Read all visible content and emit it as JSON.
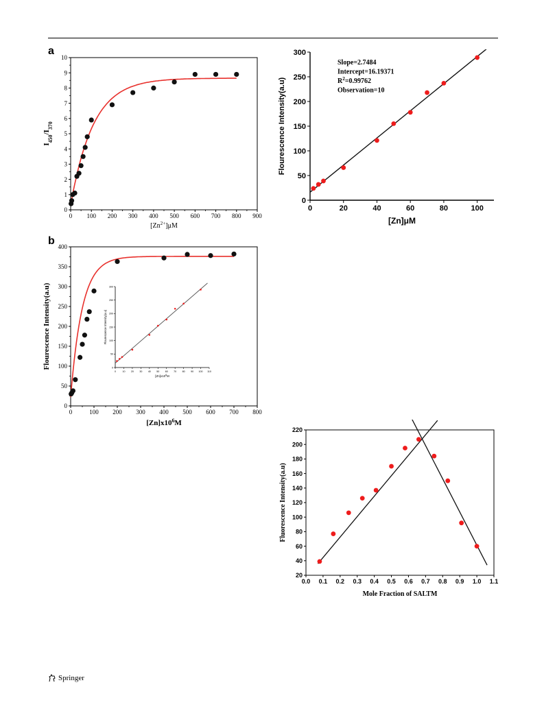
{
  "page": {
    "panel_a_letter": "a",
    "panel_b_letter": "b",
    "footer_publisher": "Springer",
    "footer_icon": "springer-horse-logo-icon"
  },
  "colors": {
    "fit_curve": "#e8302c",
    "marker_black": "#111111",
    "marker_red": "#ee1c1c",
    "line_black": "#111111",
    "axis": "#000000"
  },
  "chart_data": [
    {
      "id": "chart-a",
      "type": "scatter",
      "xlabel": "[Zn2+]μM",
      "ylabel": "I450/I370",
      "xlim": [
        0,
        900
      ],
      "ylim": [
        0,
        10
      ],
      "xticks": [
        0,
        100,
        200,
        300,
        400,
        500,
        600,
        700,
        800,
        900
      ],
      "yticks": [
        0,
        1,
        2,
        3,
        4,
        5,
        6,
        7,
        8,
        9,
        10
      ],
      "series": [
        {
          "marker": "black",
          "x": [
            2,
            5,
            10,
            20,
            30,
            40,
            50,
            60,
            70,
            80,
            100,
            200,
            300,
            400,
            500,
            600,
            700,
            800
          ],
          "y": [
            0.4,
            0.6,
            1.0,
            1.1,
            2.2,
            2.4,
            2.9,
            3.5,
            4.1,
            4.8,
            5.9,
            6.9,
            7.7,
            8.0,
            8.4,
            8.9,
            8.9,
            8.9
          ]
        }
      ],
      "fit": {
        "kind": "saturation",
        "y0": 0.3,
        "ymax": 8.65,
        "k": 0.0092,
        "xmax": 800
      }
    },
    {
      "id": "chart-linear-zn",
      "type": "scatter",
      "xlabel": "[Zn]μM",
      "ylabel": "Flourescence Intensity(a.u)",
      "xlim": [
        0,
        110
      ],
      "ylim": [
        0,
        300
      ],
      "xticks": [
        0,
        20,
        40,
        60,
        80,
        100
      ],
      "yticks": [
        0,
        50,
        100,
        150,
        200,
        250,
        300
      ],
      "annotation": [
        "Slope=2.7484",
        "Intercept=16.19371",
        "R2=0.99762",
        "Observation=10"
      ],
      "series": [
        {
          "marker": "red",
          "x": [
            2,
            5,
            8,
            20,
            40,
            50,
            60,
            70,
            80,
            100
          ],
          "y": [
            24,
            32,
            39,
            66,
            121,
            155,
            178,
            218,
            237,
            289
          ]
        }
      ],
      "fit": {
        "kind": "line",
        "slope": 2.7484,
        "intercept": 16.19371,
        "x0": 0,
        "x1": 108
      }
    },
    {
      "id": "chart-b",
      "type": "scatter",
      "xlabel": "[Zn]x106M",
      "ylabel": "Flourescence Intensity(a.u)",
      "xlim": [
        0,
        800
      ],
      "ylim": [
        0,
        400
      ],
      "xticks": [
        0,
        100,
        200,
        300,
        400,
        500,
        600,
        700,
        800
      ],
      "yticks": [
        0,
        50,
        100,
        150,
        200,
        250,
        300,
        350,
        400
      ],
      "series": [
        {
          "marker": "black",
          "x": [
            2,
            5,
            10,
            20,
            40,
            50,
            60,
            70,
            80,
            100,
            200,
            400,
            500,
            600,
            700
          ],
          "y": [
            30,
            33,
            38,
            66,
            122,
            155,
            178,
            218,
            237,
            289,
            363,
            372,
            381,
            378,
            382
          ]
        }
      ],
      "fit": {
        "kind": "saturation",
        "y0": 22,
        "ymax": 376,
        "k": 0.02,
        "xmax": 700
      },
      "inset": {
        "xlabel": "[Zn]x106M",
        "ylabel": "Flourescence Intensity(a.u)",
        "xlim": [
          0,
          110
        ],
        "ylim": [
          0,
          300
        ],
        "xticks": [
          0,
          10,
          20,
          30,
          40,
          50,
          60,
          70,
          80,
          90,
          100,
          110
        ],
        "yticks": [
          0,
          50,
          100,
          150,
          200,
          250,
          300
        ],
        "x": [
          2,
          5,
          8,
          20,
          40,
          50,
          60,
          70,
          80,
          100
        ],
        "y": [
          24,
          32,
          39,
          66,
          121,
          155,
          178,
          218,
          237,
          289
        ],
        "fit": {
          "slope": 2.7484,
          "intercept": 16.19371,
          "x0": 0,
          "x1": 108
        }
      }
    },
    {
      "id": "chart-job",
      "type": "scatter",
      "xlabel": "Mole Fraction of SALTM",
      "ylabel": "Fluorescence Intensity(a.u)",
      "xlim": [
        0.0,
        1.1
      ],
      "ylim": [
        20,
        220
      ],
      "xticks": [
        0.0,
        0.1,
        0.2,
        0.3,
        0.4,
        0.5,
        0.6,
        0.7,
        0.8,
        0.9,
        1.0,
        1.1
      ],
      "yticks": [
        20,
        40,
        60,
        80,
        100,
        120,
        140,
        160,
        180,
        200,
        220
      ],
      "series": [
        {
          "marker": "red",
          "x": [
            0.08,
            0.16,
            0.25,
            0.33,
            0.41,
            0.5,
            0.58,
            0.66,
            0.75,
            0.83,
            0.91,
            1.0
          ],
          "y": [
            39,
            77,
            106,
            126,
            137,
            170,
            195,
            207,
            184,
            150,
            92,
            60
          ]
        }
      ],
      "lines": [
        {
          "x0": 0.07,
          "y0": 36,
          "x1": 0.77,
          "y1": 233
        },
        {
          "x0": 0.62,
          "y0": 235,
          "x1": 1.06,
          "y1": 34
        }
      ]
    }
  ]
}
